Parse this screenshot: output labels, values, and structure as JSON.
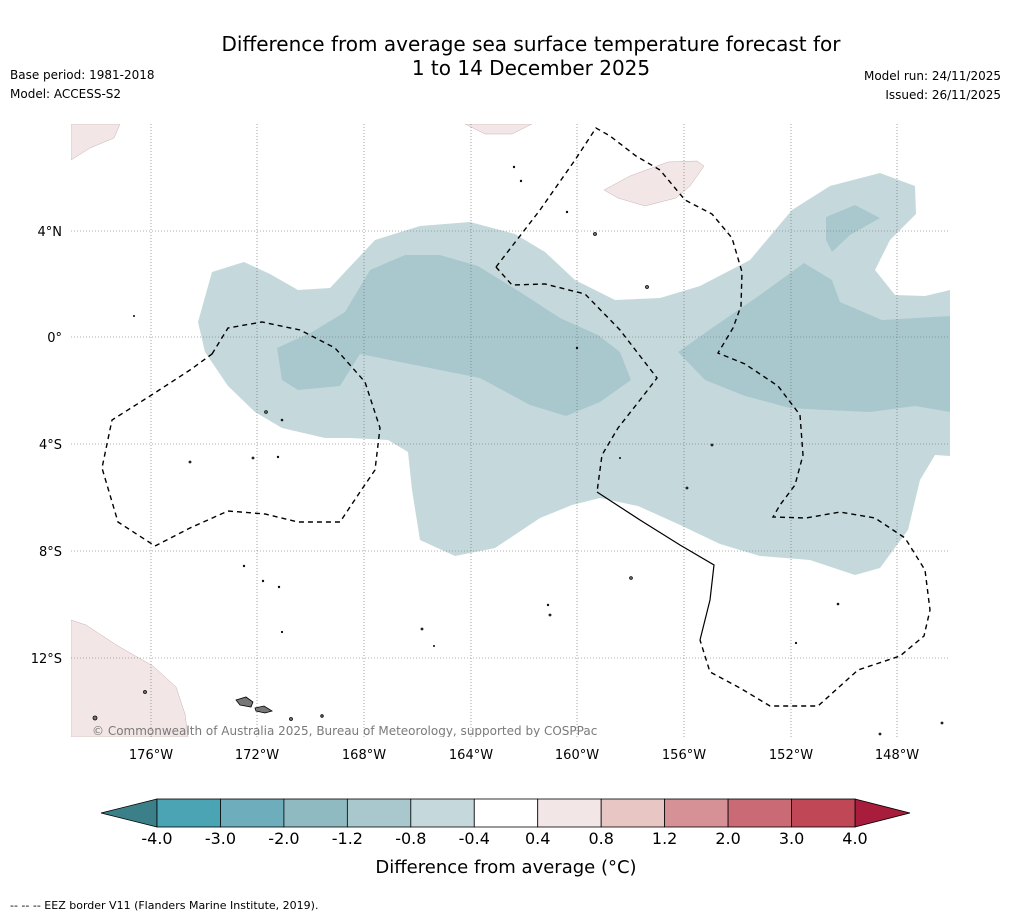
{
  "header": {
    "title_line1": "Difference from average sea surface temperature forecast for",
    "title_line2": "1 to 14 December 2025",
    "base_period": "Base period: 1981-2018",
    "model": "Model: ACCESS-S2",
    "model_run": "Model run: 24/11/2025",
    "issued": "Issued: 26/11/2025"
  },
  "map": {
    "lat_labels": [
      "4°N",
      "0°",
      "4°S",
      "8°S",
      "12°S"
    ],
    "lon_labels": [
      "176°W",
      "172°W",
      "168°W",
      "164°W",
      "160°W",
      "156°W",
      "152°W",
      "148°W"
    ],
    "copyright": "© Commonwealth of Australia 2025, Bureau of Meteorology, supported by COSPPac"
  },
  "colorbar": {
    "ticks": [
      "-4.0",
      "-3.0",
      "-2.0",
      "-1.2",
      "-0.8",
      "-0.4",
      "0.4",
      "0.8",
      "1.2",
      "2.0",
      "3.0",
      "4.0"
    ],
    "colors": [
      "#4aa4b4",
      "#6eaebc",
      "#8fbac2",
      "#a9c8cd",
      "#c5d9dd",
      "#ffffff",
      "#f3e6e6",
      "#e8c6c3",
      "#d69196",
      "#c96a74",
      "#bf4756"
    ],
    "low_extend_color": "#3b7f89",
    "high_extend_color": "#a81d3c",
    "label": "Difference from average (°C)"
  },
  "footer": {
    "eez_note": "--  --  -- EEZ border V11 (Flanders Marine Institute, 2019)."
  }
}
